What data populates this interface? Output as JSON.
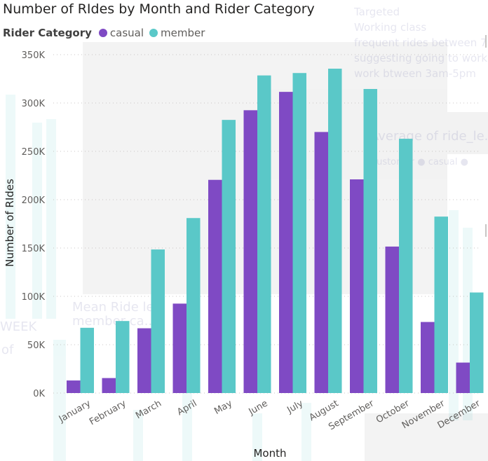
{
  "background_text": {
    "targeted": "Targeted",
    "working_class": "Working class",
    "frequent_rides": "frequent rides between 7...",
    "suggesting": "suggesting going to work",
    "work_between": "work btween 3am-5pm",
    "avg_title": "Average of ride_le...",
    "avg_legend": "Customer ● casual ●",
    "mean_ride": "Mean Ride le...",
    "member_ca": "member ca...",
    "week": "WEEK",
    "of": "of"
  },
  "chart_data": {
    "type": "bar",
    "title": "Number of RIdes by Month and Rider Category",
    "legend_title": "Rider Category",
    "xlabel": "Month",
    "ylabel": "Number of RIdes",
    "ylim": [
      0,
      350000
    ],
    "yticks": [
      0,
      50000,
      100000,
      150000,
      200000,
      250000,
      300000,
      350000
    ],
    "ytick_labels": [
      "0K",
      "50K",
      "100K",
      "150K",
      "200K",
      "250K",
      "300K",
      "350K"
    ],
    "categories": [
      "January",
      "February",
      "March",
      "April",
      "May",
      "June",
      "July",
      "August",
      "September",
      "October",
      "November",
      "December"
    ],
    "series": [
      {
        "name": "casual",
        "color": "#7f4ac4",
        "values": [
          13000,
          15500,
          67000,
          92500,
          220500,
          292500,
          311500,
          270000,
          221000,
          151500,
          73500,
          31500
        ]
      },
      {
        "name": "member",
        "color": "#5ac8c8",
        "values": [
          67500,
          74500,
          148500,
          181000,
          282500,
          328500,
          331000,
          335500,
          314500,
          263000,
          182500,
          104000
        ]
      }
    ]
  }
}
